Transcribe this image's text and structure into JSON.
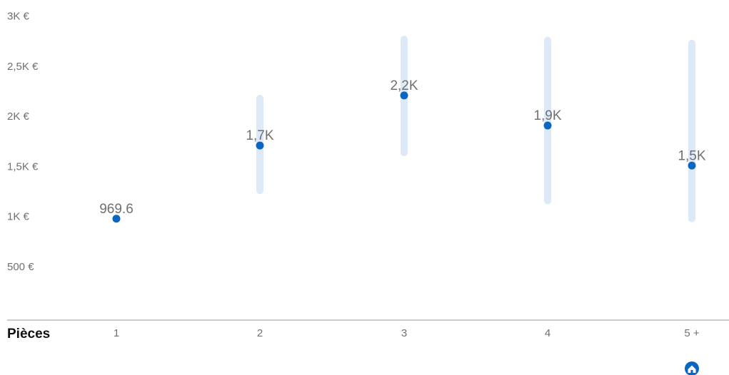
{
  "chart_data": {
    "type": "scatter",
    "xlabel": "Pièces",
    "categories": [
      "1",
      "2",
      "3",
      "4",
      "5 +"
    ],
    "values": [
      969.6,
      1700,
      2200,
      1900,
      1500
    ],
    "data_labels": [
      "969.6",
      "1,7K",
      "2,2K",
      "1,9K",
      "1,5K"
    ],
    "ranges": [
      [
        969.6,
        969.6
      ],
      [
        1250,
        2170
      ],
      [
        1630,
        2760
      ],
      [
        1150,
        2750
      ],
      [
        970,
        2720
      ]
    ],
    "yticks": [
      {
        "value": 500,
        "label": "500 €"
      },
      {
        "value": 1000,
        "label": "1K €"
      },
      {
        "value": 1500,
        "label": "1,5K €"
      },
      {
        "value": 2000,
        "label": "2K €"
      },
      {
        "value": 2500,
        "label": "2,5K €"
      },
      {
        "value": 3000,
        "label": "3K €"
      }
    ],
    "ylim": [
      0,
      3000
    ],
    "grid": false
  },
  "colors": {
    "point": "#0a66c2",
    "range_bar": "#dde9f6",
    "axis": "#9a9a9a",
    "home_icon": "#0a66c2"
  },
  "icons": {
    "home": "home-icon"
  }
}
